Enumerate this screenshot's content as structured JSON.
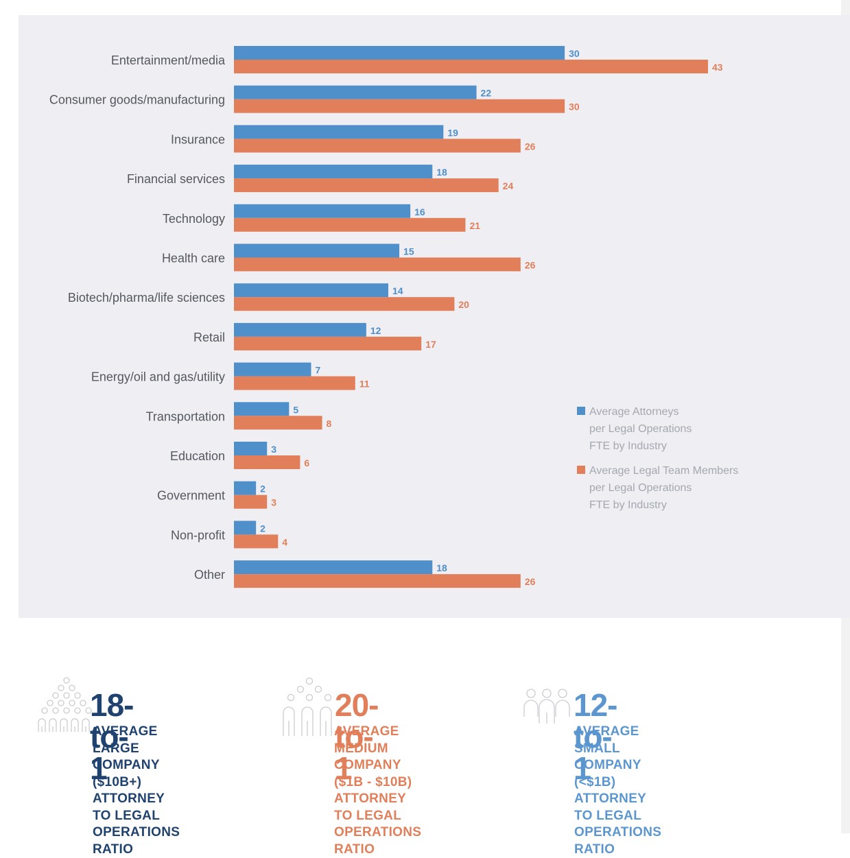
{
  "colors": {
    "attorneys": "#4f8fca",
    "team": "#e07f5a",
    "large": "#1f426f",
    "medium": "#e07f5a",
    "small": "#5b96cf"
  },
  "chart_data": {
    "type": "bar",
    "orientation": "horizontal",
    "categories": [
      "Entertainment/media",
      "Consumer goods/manufacturing",
      "Insurance",
      "Financial services",
      "Technology",
      "Health care",
      "Biotech/pharma/life sciences",
      "Retail",
      "Energy/oil and gas/utility",
      "Transportation",
      "Education",
      "Government",
      "Non-profit",
      "Other"
    ],
    "series": [
      {
        "name": "Average Attorneys per Legal Operations FTE by Industry",
        "legend_lines": [
          "Average Attorneys",
          "per Legal Operations",
          "FTE by Industry"
        ],
        "color": "#4f8fca",
        "values": [
          30,
          22,
          19,
          18,
          16,
          15,
          14,
          12,
          7,
          5,
          3,
          2,
          2,
          18
        ]
      },
      {
        "name": "Average Legal Team Members per Legal Operations FTE by Industry",
        "legend_lines": [
          "Average Legal Team Members",
          "per Legal Operations",
          "FTE by Industry"
        ],
        "color": "#e07f5a",
        "values": [
          43,
          30,
          26,
          24,
          21,
          26,
          20,
          17,
          11,
          8,
          6,
          3,
          4,
          26
        ]
      }
    ],
    "xlim": [
      0,
      43
    ],
    "legend_position": "right",
    "grid": false
  },
  "stats": [
    {
      "ratio": "18-to-1",
      "description": "AVERAGE LARGE\nCOMPANY ($10B+)\nATTORNEY TO LEGAL\nOPERATIONS RATIO",
      "icon": "large-crowd-icon"
    },
    {
      "ratio": "20-to-1",
      "description": "AVERAGE MEDIUM\nCOMPANY ($1B - $10B)\nATTORNEY TO LEGAL\nOPERATIONS RATIO",
      "icon": "medium-group-icon"
    },
    {
      "ratio": "12-to-1",
      "description": "AVERAGE SMALL\nCOMPANY (<$1B)\nATTORNEY TO LEGAL\nOPERATIONS RATIO",
      "icon": "small-group-icon"
    }
  ]
}
